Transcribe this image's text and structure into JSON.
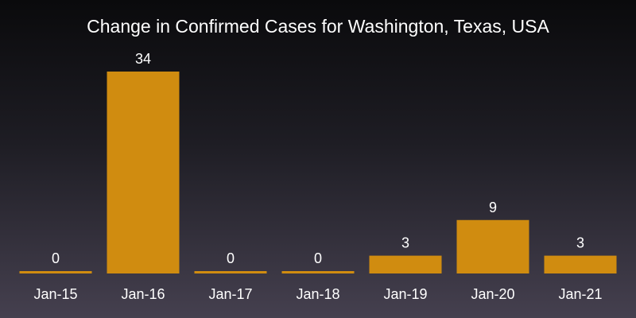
{
  "chart_data": {
    "type": "bar",
    "title": "Change in Confirmed Cases for Washington, Texas, USA",
    "categories": [
      "Jan-15",
      "Jan-16",
      "Jan-17",
      "Jan-18",
      "Jan-19",
      "Jan-20",
      "Jan-21"
    ],
    "values": [
      0,
      34,
      0,
      0,
      3,
      9,
      3
    ],
    "data_labels": [
      "0",
      "34",
      "0",
      "0",
      "3",
      "9",
      "3"
    ],
    "xlabel": "",
    "ylabel": "",
    "ylim": [
      0,
      34
    ],
    "grid": false,
    "bar_color": "#d08c10",
    "background_color": "#1e1d24"
  }
}
